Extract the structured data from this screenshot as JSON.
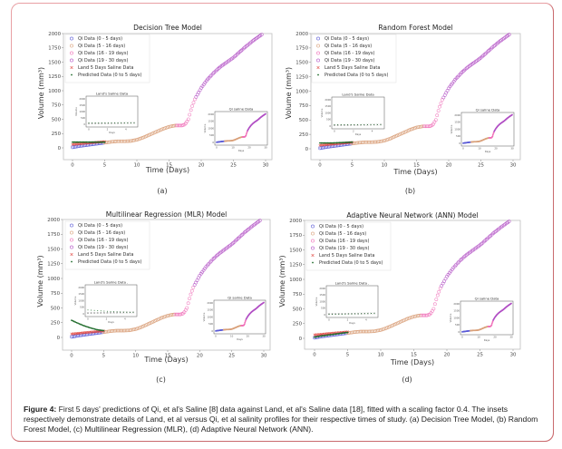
{
  "caption": {
    "label": "Figure 4:",
    "text": " First 5 days' predictions of Qi, et al's Saline [8] data against Land, et al's Saline data [18], fitted with a scaling factor 0.4. The insets respectively demonstrate details of Land, et al versus Qi, et al salinity profiles for their respective times of study. (a) Decision Tree Model, (b) Random Forest Model, (c) Multilinear Regression (MLR), (d) Adaptive Neural Network (ANN)."
  },
  "colors": {
    "frame": "#e8a0a4",
    "qi_0_5": "#5b5bd6",
    "qi_5_16": "#d9a07a",
    "qi_16_19": "#f06fb8",
    "qi_19_30": "#b14fc4",
    "land": "#e0453f",
    "predicted": "#1f6b2a"
  },
  "chart_data": [
    {
      "id": "a",
      "type": "scatter",
      "panel_label": "(a)",
      "title": "Decision Tree Model",
      "xlabel": "Time (Days)",
      "ylabel": "Volume (mm³)",
      "xlim": [
        -1.5,
        31
      ],
      "ylim": [
        -200,
        2000
      ],
      "xticks": [
        0,
        5,
        10,
        15,
        20,
        25,
        30
      ],
      "yticks": [
        0,
        250,
        500,
        750,
        1000,
        1250,
        1500,
        1750,
        2000
      ],
      "legend": [
        "Qi Data (0 - 5 days)",
        "Qi Data (5 - 16 days)",
        "Qi Data (16 - 19 days)",
        "Qi Data (19 - 30 days)",
        "Land 5 Days Saline Data",
        "Predicted Data (0 to 5 days)"
      ],
      "legend_position": "upper-left",
      "predicted": {
        "x": [
          0,
          1,
          2,
          3,
          4,
          5
        ],
        "y": [
          100,
          100,
          100,
          100,
          100,
          100
        ]
      },
      "inset_land": {
        "title": "Land's Saline  Data",
        "xlabel": "Days",
        "ylabel": "Volume",
        "xticks": [
          0,
          2,
          4
        ],
        "yticks": [
          0,
          500,
          1000,
          1500,
          2000
        ]
      },
      "inset_qi": {
        "title": "Qi saline Data",
        "xlabel": "Days",
        "ylabel": "Volume",
        "xticks": [
          0,
          10,
          20,
          30
        ],
        "yticks": [
          0,
          500,
          1000,
          1500,
          2000
        ]
      }
    },
    {
      "id": "b",
      "type": "scatter",
      "panel_label": "(b)",
      "title": "Random Forest Model",
      "xlabel": "Time (Days)",
      "ylabel": "Volume (mm³)",
      "xlim": [
        -1.5,
        31
      ],
      "ylim": [
        -200,
        2000
      ],
      "xticks": [
        0,
        5,
        10,
        15,
        20,
        25,
        30
      ],
      "yticks": [
        0,
        250,
        500,
        750,
        1000,
        1250,
        1500,
        1750,
        2000
      ],
      "legend": [
        "Qi Data (0 - 5 days)",
        "Qi Data (5 - 16 days)",
        "Qi Data (16 - 19 days)",
        "Qi Data (19 - 30 days)",
        "Land 5 Days Saline Data",
        "Predicted Data (0 to 5 days)"
      ],
      "legend_position": "upper-left",
      "predicted": {
        "x": [
          0,
          1,
          2,
          3,
          4,
          5
        ],
        "y": [
          100,
          100,
          100,
          105,
          110,
          115
        ]
      },
      "inset_land": {
        "title": "Land's Saline  Data",
        "xlabel": "Days",
        "ylabel": "Volume",
        "xticks": [
          0,
          2,
          4
        ],
        "yticks": [
          0,
          500,
          1000,
          1500,
          2000
        ]
      },
      "inset_qi": {
        "title": "Qi saline Data",
        "xlabel": "Days",
        "ylabel": "Volume",
        "xticks": [
          0,
          10,
          20,
          30
        ],
        "yticks": [
          0,
          500,
          1000,
          1500,
          2000
        ]
      }
    },
    {
      "id": "c",
      "type": "scatter",
      "panel_label": "(c)",
      "title": "Multilinear Regression (MLR) Model",
      "xlabel": "Time (Days)",
      "ylabel": "Volume (mm³)",
      "xlim": [
        -1.5,
        31
      ],
      "ylim": [
        -200,
        2000
      ],
      "xticks": [
        0,
        5,
        10,
        15,
        20,
        25,
        30
      ],
      "yticks": [
        0,
        250,
        500,
        750,
        1000,
        1250,
        1500,
        1750,
        2000
      ],
      "legend": [
        "Qi Data (0 - 5 days)",
        "Qi Data (5 - 16 days)",
        "Qi Data (16 - 19 days)",
        "Qi Data (19 - 30 days)",
        "Land 5 Days Saline Data",
        "Predicted Data (0 to 5 days)"
      ],
      "legend_position": "upper-left",
      "predicted": {
        "x": [
          0,
          1,
          2,
          3,
          4,
          5
        ],
        "y": [
          290,
          240,
          195,
          160,
          130,
          115
        ]
      },
      "inset_land": {
        "title": "Land's Saline  Data .",
        "xlabel": "Days",
        "ylabel": "Volume",
        "xticks": [
          0,
          2,
          4
        ],
        "yticks": [
          0,
          500,
          1000,
          1500,
          2000
        ]
      },
      "inset_qi": {
        "title": "Qi saline Data",
        "xlabel": "Days",
        "ylabel": "Volume",
        "xticks": [
          0,
          10,
          20,
          30
        ],
        "yticks": [
          0,
          500,
          1000,
          1500,
          2000
        ]
      }
    },
    {
      "id": "d",
      "type": "scatter",
      "panel_label": "(d)",
      "title": "Adaptive Neural Network (ANN) Model",
      "xlabel": "Time (Days)",
      "ylabel": "Volume (mm³)",
      "xlim": [
        -1.5,
        31
      ],
      "ylim": [
        -200,
        2000
      ],
      "xticks": [
        0,
        5,
        10,
        15,
        20,
        25,
        30
      ],
      "yticks": [
        0,
        250,
        500,
        750,
        1000,
        1250,
        1500,
        1750,
        2000
      ],
      "legend": [
        "Qi Data (0 - 5 days)",
        "Qi Data (5 - 16 days)",
        "Qi Data (16 - 19 days)",
        "Qi Data (19 - 30 days)",
        "Land 5 Days Saline Data",
        "Predicted Data (0 to 5 days)"
      ],
      "legend_position": "upper-left",
      "predicted": {
        "x": [
          0,
          1,
          2,
          3,
          4,
          5
        ],
        "y": [
          20,
          40,
          55,
          70,
          85,
          100
        ]
      },
      "inset_land": {
        "title": "Land's Saline  Data .",
        "xlabel": "Days",
        "ylabel": "Volume",
        "xticks": [
          0,
          2,
          4
        ],
        "yticks": [
          0,
          500,
          1000,
          1500,
          2000
        ]
      },
      "inset_qi": {
        "title": "Qi saline Data",
        "xlabel": "Days",
        "ylabel": "Volume",
        "xticks": [
          0,
          10,
          20,
          30
        ],
        "yticks": [
          0,
          500,
          1000,
          1500,
          2000
        ]
      }
    }
  ],
  "qi_series": {
    "x": [
      0,
      1,
      2,
      3,
      4,
      5,
      6,
      7,
      8,
      9,
      10,
      11,
      12,
      13,
      14,
      15,
      16,
      17,
      17.5,
      18,
      18.5,
      19,
      20,
      21,
      22,
      23,
      24,
      25,
      26,
      27,
      28,
      29,
      30
    ],
    "y": [
      10,
      30,
      45,
      60,
      75,
      90,
      105,
      115,
      115,
      120,
      140,
      180,
      230,
      280,
      330,
      370,
      390,
      390,
      410,
      500,
      700,
      850,
      1050,
      1200,
      1320,
      1420,
      1500,
      1580,
      1680,
      1780,
      1870,
      1950,
      2030
    ]
  },
  "land_series": {
    "x": [
      0,
      0.5,
      1,
      1.5,
      2,
      2.5,
      3,
      3.5,
      4,
      4.5,
      5
    ],
    "y": [
      60,
      65,
      70,
      75,
      80,
      85,
      90,
      95,
      100,
      105,
      110
    ]
  }
}
